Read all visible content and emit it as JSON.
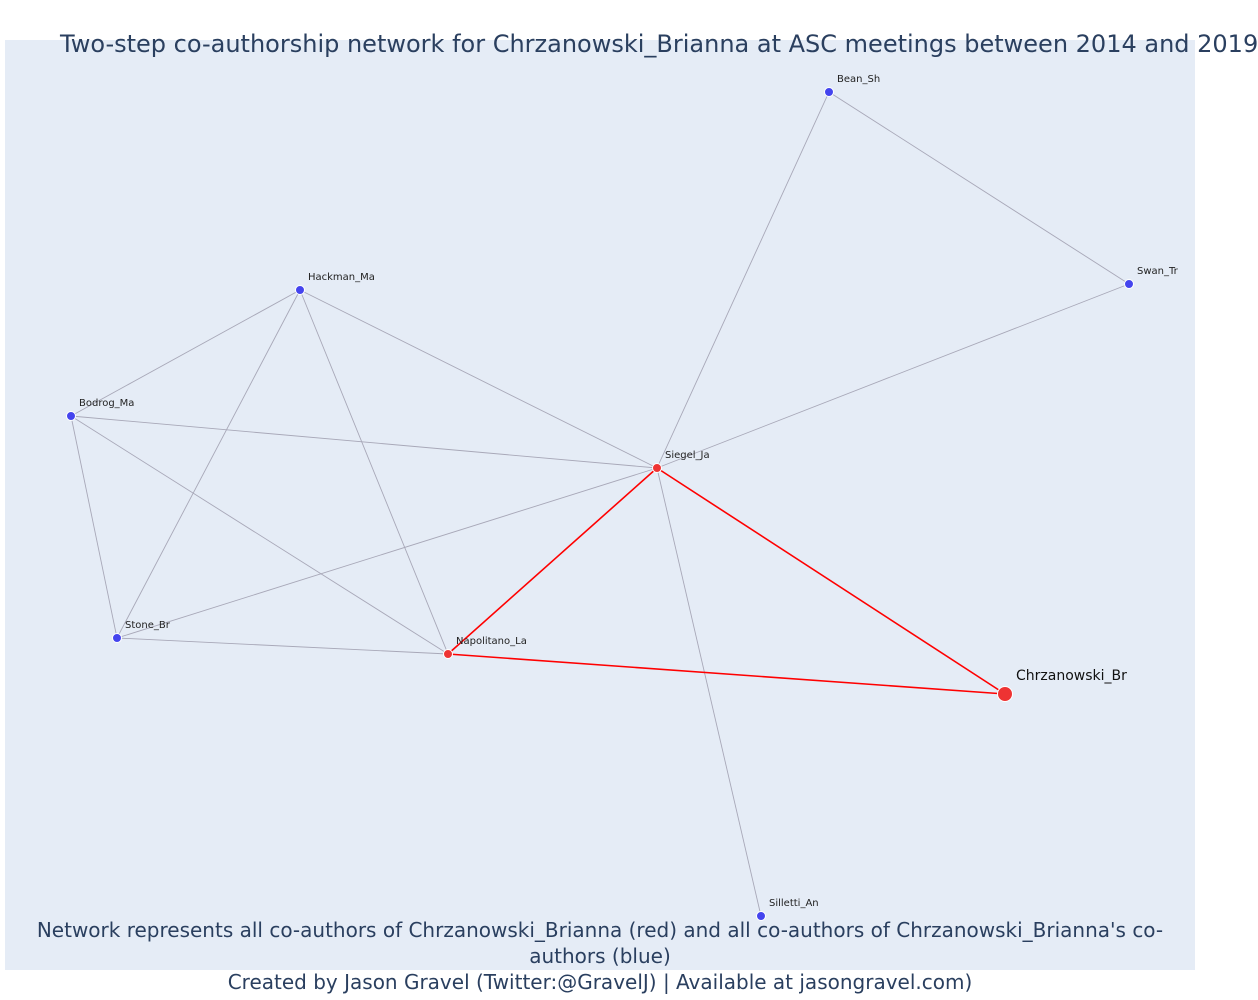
{
  "title": "Two-step co-authorship network for Chrzanowski_Brianna at ASC meetings between 2014 and 2019",
  "caption": {
    "line1": "Network represents all co-authors of Chrzanowski_Brianna (red) and all co-authors of Chrzanowski_Brianna's co-authors (blue)",
    "line2": "Created by Jason Gravel (Twitter:@GravelJ) | Available at jasongravel.com)"
  },
  "colors": {
    "background": "#e5ecf6",
    "ego": "#ee3333",
    "first_degree": "#ee3333",
    "second_degree": "#4444ee",
    "edge_red": "#ff0000",
    "edge_gray": "#a8a8b8"
  },
  "chart_data": {
    "type": "network",
    "nodes": [
      {
        "id": "Chrzanowski_Br",
        "label": "Chrzanowski_Br",
        "group": "ego"
      },
      {
        "id": "Siegel_Ja",
        "label": "Siegel_Ja",
        "group": "first_degree"
      },
      {
        "id": "Napolitano_La",
        "label": "Napolitano_La",
        "group": "first_degree"
      },
      {
        "id": "Bean_Sh",
        "label": "Bean_Sh",
        "group": "second_degree"
      },
      {
        "id": "Swan_Tr",
        "label": "Swan_Tr",
        "group": "second_degree"
      },
      {
        "id": "Hackman_Ma",
        "label": "Hackman_Ma",
        "group": "second_degree"
      },
      {
        "id": "Bodrog_Ma",
        "label": "Bodrog_Ma",
        "group": "second_degree"
      },
      {
        "id": "Stone_Br",
        "label": "Stone_Br",
        "group": "second_degree"
      },
      {
        "id": "Silletti_An",
        "label": "Silletti_An",
        "group": "second_degree"
      }
    ],
    "edges": [
      {
        "source": "Chrzanowski_Br",
        "target": "Siegel_Ja",
        "type": "ego"
      },
      {
        "source": "Chrzanowski_Br",
        "target": "Napolitano_La",
        "type": "ego"
      },
      {
        "source": "Siegel_Ja",
        "target": "Napolitano_La",
        "type": "ego"
      },
      {
        "source": "Siegel_Ja",
        "target": "Bean_Sh",
        "type": "other"
      },
      {
        "source": "Siegel_Ja",
        "target": "Swan_Tr",
        "type": "other"
      },
      {
        "source": "Bean_Sh",
        "target": "Swan_Tr",
        "type": "other"
      },
      {
        "source": "Siegel_Ja",
        "target": "Hackman_Ma",
        "type": "other"
      },
      {
        "source": "Siegel_Ja",
        "target": "Bodrog_Ma",
        "type": "other"
      },
      {
        "source": "Siegel_Ja",
        "target": "Stone_Br",
        "type": "other"
      },
      {
        "source": "Siegel_Ja",
        "target": "Silletti_An",
        "type": "other"
      },
      {
        "source": "Hackman_Ma",
        "target": "Bodrog_Ma",
        "type": "other"
      },
      {
        "source": "Hackman_Ma",
        "target": "Stone_Br",
        "type": "other"
      },
      {
        "source": "Hackman_Ma",
        "target": "Napolitano_La",
        "type": "other"
      },
      {
        "source": "Bodrog_Ma",
        "target": "Stone_Br",
        "type": "other"
      },
      {
        "source": "Bodrog_Ma",
        "target": "Napolitano_La",
        "type": "other"
      },
      {
        "source": "Stone_Br",
        "target": "Napolitano_La",
        "type": "other"
      }
    ]
  }
}
